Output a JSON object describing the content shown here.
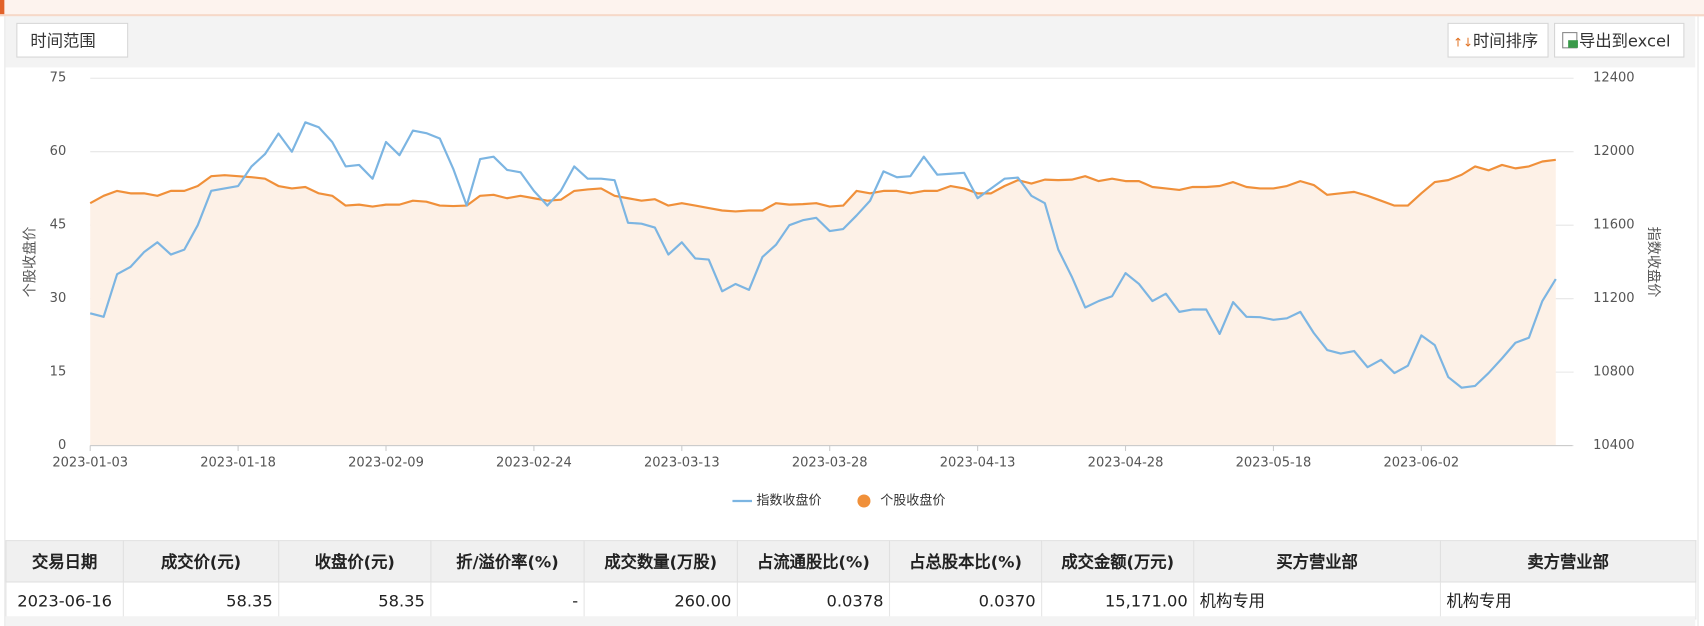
{
  "toolbar": {
    "filter": "时间范围",
    "sort": "时间排序",
    "export": "导出到excel"
  },
  "chart_data": {
    "type": "line",
    "ylabel": "个股收盘价",
    "y2label": "指数收盘价",
    "categories": [
      "2023-01-03",
      null,
      null,
      null,
      null,
      null,
      null,
      null,
      null,
      null,
      null,
      "2023-01-18",
      null,
      null,
      null,
      null,
      null,
      null,
      null,
      null,
      null,
      null,
      "2023-02-09",
      null,
      null,
      null,
      null,
      null,
      null,
      null,
      null,
      null,
      null,
      "2023-02-24",
      null,
      null,
      null,
      null,
      null,
      null,
      null,
      null,
      null,
      null,
      "2023-03-13",
      null,
      null,
      null,
      null,
      null,
      null,
      null,
      null,
      null,
      null,
      "2023-03-28",
      null,
      null,
      null,
      null,
      null,
      null,
      null,
      null,
      null,
      null,
      "2023-04-13",
      null,
      null,
      null,
      null,
      null,
      null,
      null,
      null,
      null,
      null,
      "2023-04-28",
      null,
      null,
      null,
      null,
      null,
      null,
      null,
      null,
      null,
      null,
      "2023-05-18",
      null,
      null,
      null,
      null,
      null,
      null,
      null,
      null,
      null,
      null,
      "2023-06-02",
      null,
      null,
      null,
      null,
      null,
      null,
      null,
      null,
      null,
      null
    ],
    "ylim": [
      0,
      75
    ],
    "yticks": [
      0,
      15,
      30,
      45,
      60,
      75
    ],
    "y2lim": [
      10400,
      12400
    ],
    "y2ticks": [
      10400,
      10800,
      11200,
      11600,
      12000,
      12400
    ],
    "grid": true,
    "legend": "bottom",
    "series": [
      {
        "name": "指数收盘价",
        "color": "#7cb5e2",
        "axis": "y2",
        "values": [
          11120,
          11101,
          11333,
          11373,
          11453,
          11507,
          11440,
          11467,
          11600,
          11787,
          11800,
          11813,
          11920,
          11987,
          12099,
          12000,
          12160,
          12133,
          12053,
          11920,
          11928,
          11853,
          12053,
          11981,
          12115,
          12101,
          12072,
          11907,
          11707,
          11960,
          11973,
          11901,
          11888,
          11787,
          11707,
          11787,
          11920,
          11853,
          11853,
          11845,
          11613,
          11608,
          11587,
          11440,
          11507,
          11419,
          11413,
          11240,
          11280,
          11248,
          11427,
          11493,
          11600,
          11627,
          11640,
          11568,
          11579,
          11653,
          11733,
          11893,
          11861,
          11867,
          11973,
          11875,
          11880,
          11885,
          11747,
          11800,
          11853,
          11859,
          11760,
          11720,
          11467,
          11320,
          11152,
          11187,
          11213,
          11339,
          11280,
          11187,
          11227,
          11128,
          11141,
          11141,
          11008,
          11181,
          11101,
          11099,
          11085,
          11093,
          11128,
          11013,
          10920,
          10901,
          10915,
          10827,
          10867,
          10795,
          10835,
          11000,
          10947,
          10773,
          10715,
          10725,
          10795,
          10875,
          10960,
          10987,
          11187,
          11307
        ]
      },
      {
        "name": "个股收盘价",
        "color": "#f0903a",
        "area_color": "#fdf1e7",
        "values": [
          49.5,
          51,
          52,
          51.5,
          51.5,
          51,
          52,
          52,
          53,
          55,
          55.2,
          55,
          54.8,
          54.5,
          53,
          52.5,
          52.8,
          51.5,
          51,
          49,
          49.2,
          48.8,
          49.2,
          49.2,
          50,
          49.8,
          49,
          48.9,
          49,
          51,
          51.2,
          50.5,
          51,
          50.5,
          50,
          50.2,
          52,
          52.3,
          52.5,
          51,
          50.5,
          50,
          50.3,
          49,
          49.5,
          49,
          48.5,
          48,
          47.8,
          48,
          48,
          49.5,
          49.2,
          49.3,
          49.5,
          48.8,
          49,
          52,
          51.5,
          52,
          52,
          51.5,
          52,
          52,
          53,
          52.5,
          51.5,
          51.5,
          53,
          54.2,
          53.5,
          54.3,
          54.2,
          54.3,
          55,
          54,
          54.5,
          54,
          54,
          52.8,
          52.5,
          52.2,
          52.8,
          52.8,
          53,
          53.8,
          52.8,
          52.5,
          52.5,
          53,
          54,
          53.2,
          51.2,
          51.5,
          51.8,
          51,
          50,
          49,
          49,
          51.5,
          53.8,
          54.2,
          55.3,
          57,
          56.2,
          57.3,
          56.6,
          57,
          58,
          58.35
        ]
      }
    ]
  },
  "table": {
    "columns": [
      "交易日期",
      "成交价(元)",
      "收盘价(元)",
      "折/溢价率(%)",
      "成交数量(万股)",
      "占流通股比(%)",
      "占总股本比(%)",
      "成交金额(万元)",
      "买方营业部",
      "卖方营业部"
    ],
    "rows": [
      [
        "2023-06-16",
        "58.35",
        "58.35",
        "-",
        "260.00",
        "0.0378",
        "0.0370",
        "15,171.00",
        "机构专用",
        "机构专用"
      ]
    ]
  }
}
